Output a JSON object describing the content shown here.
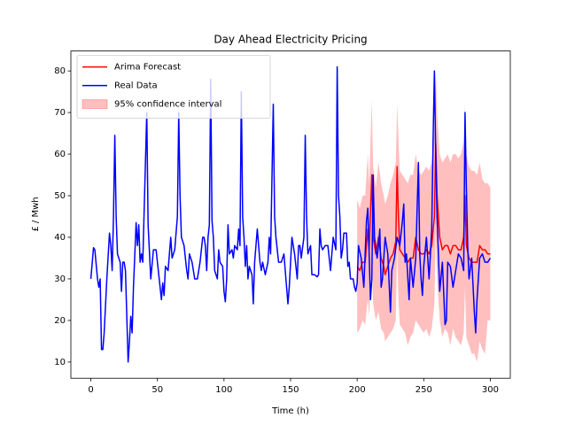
{
  "chart_data": {
    "type": "line",
    "title": "Day Ahead Electricity Pricing",
    "x_label": "Time (h)",
    "y_label": "£ / Mwh",
    "xlim": [
      -15,
      315
    ],
    "ylim": [
      6.1,
      84.8
    ],
    "xticks": [
      0,
      50,
      100,
      150,
      200,
      250,
      300
    ],
    "yticks": [
      10,
      20,
      30,
      40,
      50,
      60,
      70,
      80
    ],
    "legend": "upper left",
    "series": [
      {
        "name": "Arima Forecast",
        "color": "#ff0000",
        "x": [
          200,
          202,
          204,
          206,
          207,
          208,
          209,
          211,
          212,
          214,
          216,
          218,
          220,
          221,
          223,
          225,
          227,
          229,
          230,
          231,
          232,
          234,
          236,
          238,
          240,
          242,
          244,
          246,
          248,
          250,
          252,
          254,
          256,
          258,
          259,
          260,
          262,
          264,
          266,
          268,
          270,
          272,
          274,
          276,
          278,
          280,
          281,
          282,
          284,
          286,
          288,
          290,
          292,
          294,
          296,
          298,
          300
        ],
        "values": [
          33,
          32,
          34,
          34,
          38,
          42,
          37,
          55,
          40,
          36,
          40,
          35,
          33,
          31,
          33,
          35,
          36,
          39,
          57,
          45,
          37,
          36,
          35,
          34,
          35,
          35,
          40,
          37,
          36,
          36,
          37,
          36,
          38,
          45,
          62.5,
          50,
          40,
          37,
          38,
          38,
          36,
          38,
          38,
          37,
          37,
          40,
          50,
          38,
          35,
          34,
          34,
          34,
          38,
          37,
          37,
          36,
          36
        ]
      },
      {
        "name": "Real Data",
        "color": "#0000ff",
        "x": [
          0,
          2,
          3,
          5,
          6,
          7,
          8,
          9,
          10,
          12,
          14,
          15,
          16,
          17,
          18,
          19,
          20,
          22,
          23,
          24,
          25,
          26,
          28,
          29,
          30,
          31,
          32,
          34,
          35,
          36,
          37,
          38,
          39,
          42,
          43,
          45,
          47,
          49,
          50,
          52,
          53,
          54,
          55,
          56,
          58,
          60,
          61,
          63,
          65,
          66,
          67,
          68,
          70,
          72,
          73,
          74,
          76,
          78,
          80,
          82,
          84,
          85,
          86,
          87,
          88,
          89,
          90,
          91,
          92,
          93,
          95,
          96,
          97,
          99,
          100,
          101,
          102,
          103,
          104,
          106,
          107,
          108,
          110,
          111,
          112,
          113,
          114,
          115,
          116,
          117,
          118,
          119,
          121,
          122,
          123,
          125,
          127,
          128,
          129,
          131,
          133,
          134,
          135,
          137,
          138,
          139,
          141,
          143,
          145,
          147,
          148,
          149,
          151,
          153,
          155,
          156,
          157,
          158,
          160,
          161,
          162,
          163,
          165,
          166,
          168,
          170,
          171,
          172,
          173,
          174,
          176,
          178,
          180,
          182,
          184,
          185,
          186,
          187,
          188,
          189,
          190,
          192,
          193,
          194,
          195,
          197,
          198,
          199,
          200,
          201,
          203,
          205,
          207,
          208,
          210,
          211,
          212,
          213,
          215,
          216,
          217,
          218,
          219,
          221,
          223,
          225,
          226,
          228,
          230,
          232,
          234,
          235,
          236,
          237,
          239,
          240,
          242,
          244,
          246,
          247,
          248,
          249,
          250,
          252,
          254,
          256,
          257,
          258,
          259,
          260,
          262,
          264,
          266,
          267,
          268,
          270,
          272,
          274,
          276,
          278,
          280,
          281,
          282,
          283,
          284,
          286,
          288,
          289,
          290,
          292,
          294,
          296,
          298,
          300
        ],
        "values": [
          30,
          37.5,
          37,
          30,
          28,
          30,
          13,
          13,
          17,
          30,
          41,
          38,
          32,
          45,
          64.5,
          45,
          36,
          34,
          27,
          34,
          34,
          32,
          10,
          15,
          21,
          17,
          28,
          43.5,
          38,
          43,
          34,
          36,
          34,
          70,
          43,
          30,
          37,
          37,
          34,
          28,
          25,
          29,
          26,
          33,
          32,
          40,
          35,
          37,
          45,
          70,
          50,
          40,
          38,
          32,
          30,
          36,
          34,
          30,
          30,
          34,
          40,
          40,
          38,
          32,
          40,
          43,
          78,
          44,
          40,
          32,
          30,
          37,
          34,
          33,
          27,
          24.5,
          30,
          43,
          36,
          37,
          35,
          38,
          37,
          42,
          38,
          75,
          45,
          40,
          33,
          38,
          30,
          33,
          31,
          24,
          34,
          42,
          34,
          32,
          34,
          31,
          34,
          40,
          36,
          72,
          45,
          40,
          34,
          34,
          36,
          28,
          24,
          28,
          40,
          36,
          30,
          38,
          38,
          35,
          40,
          64.5,
          45,
          36,
          38,
          31,
          31,
          30.5,
          31,
          42,
          38,
          37,
          38,
          38,
          32,
          40,
          37,
          81,
          50,
          45,
          35,
          37,
          41,
          41,
          33,
          34,
          30,
          30,
          28,
          27,
          29,
          38,
          35,
          28,
          44,
          47,
          25,
          30,
          55,
          40,
          35,
          38,
          42,
          28,
          30,
          40,
          36,
          22,
          32,
          35,
          40,
          38,
          44,
          48,
          34,
          36,
          25,
          35,
          28,
          35,
          58,
          36,
          30,
          26,
          33,
          40,
          30,
          42,
          63,
          80,
          60,
          45,
          27,
          34,
          19,
          20,
          34,
          33,
          28,
          32,
          36,
          35,
          32,
          70,
          52,
          38,
          30,
          35,
          22,
          17,
          25,
          35,
          36,
          34,
          34,
          35
        ]
      }
    ],
    "band": {
      "name": "95% confidence interval",
      "color": "#ff0000",
      "opacity": 0.25,
      "lower": [
        17,
        18,
        20,
        19,
        22,
        25,
        21,
        35,
        24,
        20,
        22,
        18,
        17,
        15,
        16,
        17,
        18,
        20,
        38,
        25,
        19,
        18,
        17,
        14,
        16,
        17,
        20,
        19,
        18,
        17,
        18,
        16,
        18,
        24,
        42,
        30,
        20,
        16,
        18,
        17,
        14,
        18,
        16,
        15,
        14,
        17,
        28,
        16,
        14,
        12,
        12,
        10,
        15,
        13,
        12,
        20,
        20
      ],
      "upper": [
        49,
        47,
        50,
        50,
        55,
        60,
        53,
        73,
        57,
        52,
        58,
        53,
        50,
        48,
        50,
        53,
        55,
        58,
        72,
        64,
        56,
        55,
        54,
        53,
        55,
        55,
        60,
        56,
        55,
        56,
        57,
        56,
        58,
        66,
        80,
        70,
        60,
        58,
        59,
        60,
        58,
        60,
        60,
        59,
        60,
        63,
        72,
        60,
        57,
        56,
        56,
        55,
        58,
        54,
        53,
        53,
        52
      ]
    }
  }
}
